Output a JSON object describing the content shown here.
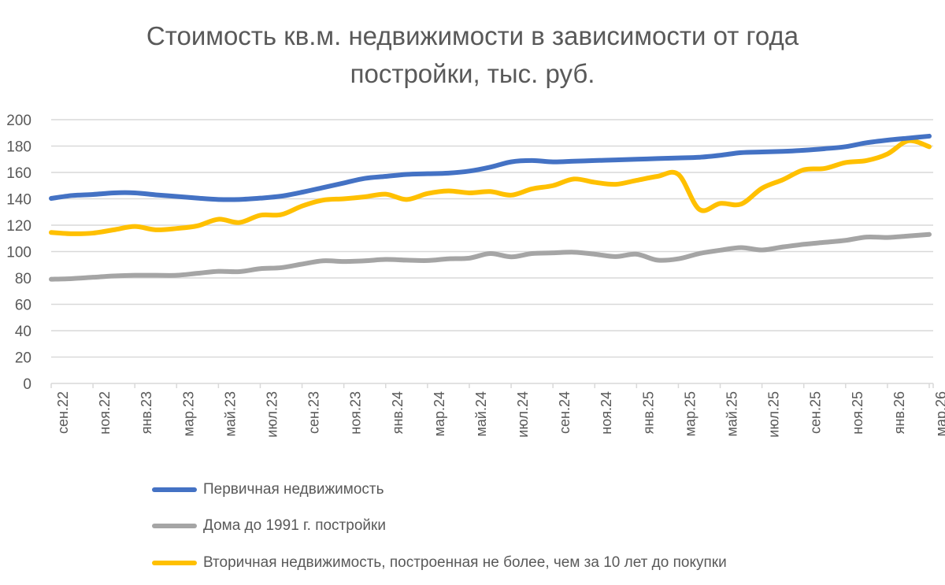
{
  "chart_data": {
    "type": "line",
    "title": "Стоимость кв.м. недвижимости в зависимости от года постройки, тыс. руб.",
    "title_lines": [
      "Стоимость кв.м. недвижимости в зависимости от года",
      "постройки, тыс. руб."
    ],
    "xlabel": "",
    "ylabel": "",
    "ylim": [
      0,
      200
    ],
    "yticks": [
      0,
      20,
      40,
      60,
      80,
      100,
      120,
      140,
      160,
      180,
      200
    ],
    "x_tick_labels": [
      "сен.22",
      "ноя.22",
      "янв.23",
      "мар.23",
      "май.23",
      "июл.23",
      "сен.23",
      "ноя.23",
      "янв.24",
      "мар.24",
      "май.24",
      "июл.24",
      "сен.24",
      "ноя.24",
      "янв.25",
      "мар.25",
      "май.25",
      "июл.25",
      "сен.25",
      "ноя.25",
      "янв.26",
      "мар.26"
    ],
    "x_tick_every": 2,
    "grid": true,
    "legend_position": "bottom",
    "series": [
      {
        "name": "Первичная недвижимость",
        "color": "#4472c4",
        "values": [
          140.3,
          142.5,
          143.3,
          144.5,
          144.5,
          143,
          141.8,
          140.5,
          139.5,
          139.5,
          140.5,
          142,
          145,
          148.5,
          152,
          155.5,
          157,
          158.5,
          159,
          159.5,
          161,
          164,
          168,
          169,
          168,
          168.5,
          169,
          169.5,
          170,
          170.5,
          171,
          171.5,
          173,
          175,
          175.5,
          176,
          176.8,
          178,
          179.5,
          182.5,
          184.5,
          186,
          187.5
        ]
      },
      {
        "name": "Дома до 1991 г. постройки",
        "color": "#a5a5a5",
        "values": [
          79,
          79.5,
          80.5,
          81.5,
          82,
          82,
          82,
          83.5,
          85,
          84.8,
          87,
          87.8,
          90.5,
          93,
          92.5,
          93,
          94,
          93.5,
          93.2,
          94.5,
          95,
          98.5,
          96,
          98.5,
          99,
          99.5,
          98,
          96.2,
          98,
          93.5,
          94.5,
          98.5,
          101,
          103,
          101.2,
          103.5,
          105.5,
          107,
          108.5,
          111,
          110.7,
          111.8,
          113
        ]
      },
      {
        "name": "Вторичная недвижимость, построенная не более, чем за 10 лет до покупки",
        "color": "#ffc000",
        "values": [
          114.5,
          113.5,
          114,
          116.5,
          119,
          116.5,
          117.5,
          119.5,
          124.5,
          122,
          127.5,
          128,
          134.5,
          139,
          140,
          141.5,
          143.5,
          139.5,
          144,
          146,
          144.5,
          145.5,
          142.8,
          147.5,
          150,
          155,
          152.5,
          151,
          154,
          157,
          158.5,
          132,
          136.5,
          136,
          148,
          154.5,
          162,
          163,
          167.5,
          169,
          174,
          184,
          179.5
        ]
      }
    ]
  }
}
